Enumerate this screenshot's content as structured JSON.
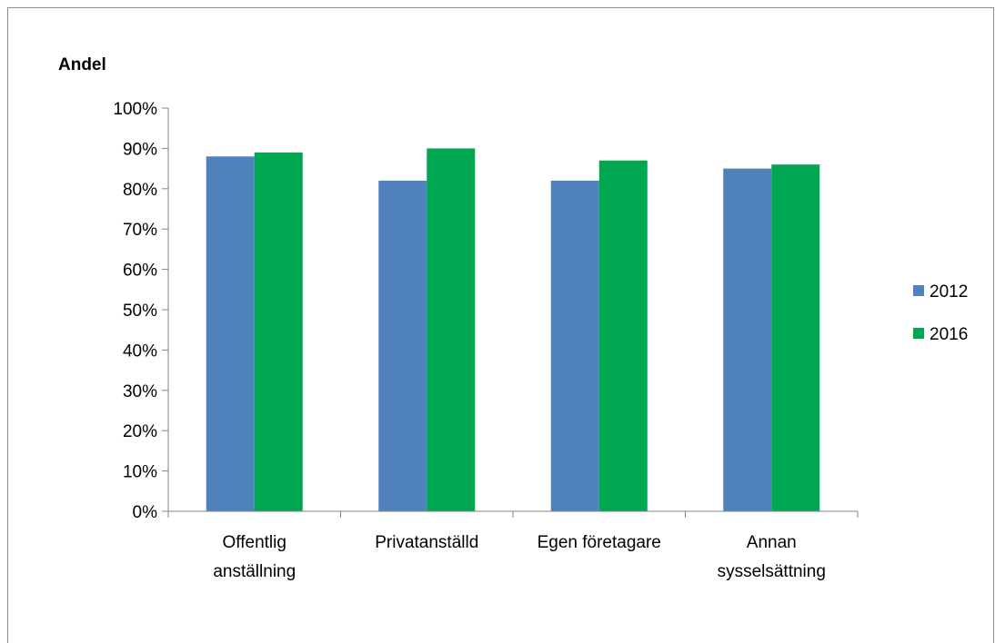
{
  "chart_data": {
    "type": "bar",
    "ylabel": "Andel",
    "categories": [
      [
        "Offentlig",
        "anställning"
      ],
      [
        "Privatanställd"
      ],
      [
        "Egen företagare"
      ],
      [
        "Annan",
        "sysselsättning"
      ]
    ],
    "series": [
      {
        "name": "2012",
        "color": "#4f81bd",
        "values": [
          0.88,
          0.82,
          0.82,
          0.85
        ]
      },
      {
        "name": "2016",
        "color": "#00a650",
        "values": [
          0.89,
          0.9,
          0.87,
          0.86
        ]
      }
    ],
    "ylim": [
      0,
      1
    ],
    "yticks": [
      "0%",
      "10%",
      "20%",
      "30%",
      "40%",
      "50%",
      "60%",
      "70%",
      "80%",
      "90%",
      "100%"
    ],
    "grid": false,
    "legend_position": "right"
  }
}
